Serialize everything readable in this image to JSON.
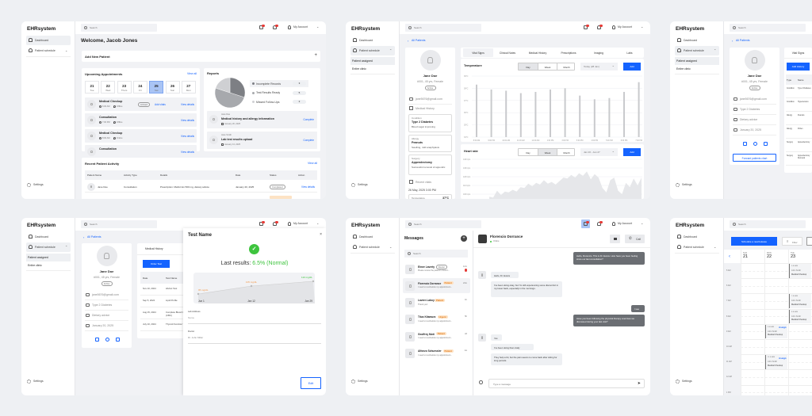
{
  "app": {
    "logo": "EHRsystem",
    "search_placeholder": "Search",
    "account": "My Account",
    "nav": {
      "dashboard": "Dashboard",
      "patient_schedule": "Patient schedule",
      "patient_assigned": "Patient assigned",
      "entire_clinic": "Entire clinic",
      "settings": "Settings"
    }
  },
  "colors": {
    "accent": "#1463ff",
    "main_bg": "#f1f2f5",
    "notification": "#e53935",
    "success": "#3ec43e",
    "warning": "#f2994a",
    "bar": "#c9cacd",
    "bubble_out": "#6b6e73",
    "bubble_in": "#eef0f3"
  },
  "dashboard": {
    "welcome": "Welcome, Jacob Jones",
    "add_patient": "Add New Patient",
    "add_icon": "+",
    "appointments": {
      "title": "Upcoming Appointments",
      "view_all": "View all",
      "dates": [
        {
          "day": "21",
          "weekday": "Tue"
        },
        {
          "day": "22",
          "weekday": "Wed"
        },
        {
          "day": "23",
          "weekday": "Thurs"
        },
        {
          "day": "24",
          "weekday": "Fri"
        },
        {
          "day": "25",
          "weekday": "Sat",
          "selected": true
        },
        {
          "day": "26",
          "weekday": "Sun"
        },
        {
          "day": "27",
          "weekday": "Mon"
        }
      ],
      "items": [
        {
          "title": "Medical Checkup",
          "time": "6:00 AM",
          "mode": "Offline",
          "badge": "Arrived",
          "add": "Add vitals",
          "view": "View details"
        },
        {
          "title": "Consultation",
          "time": "7:00 PM",
          "mode": "Offline",
          "view": "View details"
        },
        {
          "title": "Medical Checkup",
          "time": "8:00 AM",
          "mode": "Online",
          "view": "View details"
        },
        {
          "title": "Consultation",
          "time": "",
          "mode": "",
          "view": "View details"
        }
      ]
    },
    "reports": {
      "title": "Reports",
      "legend": [
        {
          "label": "Incomplete Records",
          "count": "3",
          "color": "#7d7f84"
        },
        {
          "label": "Test Results Ready",
          "count": "5",
          "color": "#a7a9ad"
        },
        {
          "label": "Missed Follow-Ups",
          "count": "2",
          "color": "#cfd0d3"
        }
      ],
      "items": [
        {
          "patient": "Jane Doe",
          "title": "Medical history and allergy information",
          "date": "January 20, 2025",
          "action": "Complete"
        },
        {
          "patient": "Jane Smith",
          "title": "Lab test results upload",
          "date": "January 13, 2025",
          "action": "Complete"
        }
      ]
    },
    "activity": {
      "title": "Recent Patient Activity",
      "view_all": "View all",
      "columns": [
        "Patient Name",
        "Activity Type",
        "Details",
        "Date",
        "Status",
        "Action"
      ],
      "rows": [
        {
          "name": "Jane Doe",
          "type": "Consultation",
          "details": "Prescription: Metformin 500 mg, dietary advice",
          "date": "January 20, 2025",
          "status": "Completed",
          "action": "View details"
        }
      ]
    }
  },
  "patient": {
    "back": "All Patients",
    "name": "Jane Doe",
    "meta": "#001, 45 yrs, Female",
    "status": "Active",
    "email": "jane5676@gmail.com",
    "condition": "Type 2 Diabetes",
    "advice": "Dietary advice",
    "date": "January 20, 2025",
    "forward": "Forward patients chart",
    "medical_history": "Medical History",
    "history_cards": [
      {
        "label": "Condition",
        "title": "Type 2 Diabetes",
        "desc": "Blood sugar improving"
      },
      {
        "label": "Allergy",
        "title": "Peanuts",
        "desc": "Swelling, mild anaphylaxis"
      },
      {
        "label": "Surgery",
        "title": "Appendectomy",
        "desc": "Successful removal of appendix"
      }
    ],
    "recent_vitals": "Recent vitals",
    "vitals_date": "26 May, 2025 3:00 PM",
    "vital_name": "Temperature",
    "vital_value": "37°C"
  },
  "vitals": {
    "tabs": [
      "Vital Signs",
      "Clinical Notes",
      "Medical History",
      "Prescriptions",
      "Imaging",
      "Labs"
    ],
    "range_options": [
      "Day",
      "Week",
      "Month"
    ],
    "add": "Add",
    "temperature": {
      "title": "Temperature",
      "selected": "Day",
      "date": "Today (28 Jan)"
    },
    "heart": {
      "title": "Heart rate",
      "selected": "Week",
      "date": "Jan 20 - Jan 27"
    }
  },
  "history_page": {
    "tab": "Vital Signs",
    "add": "Add History",
    "columns": [
      "Type",
      "Name"
    ],
    "rows": [
      [
        "Condition",
        "Type 2 Diabetes"
      ],
      [
        "Condition",
        "Hypertension"
      ],
      [
        "Allergy",
        "Peanuts"
      ],
      [
        "Allergy",
        "Pollen"
      ],
      [
        "Surgery",
        "Appendectomy"
      ],
      [
        "Surgery",
        "Appendectomy Removal"
      ]
    ]
  },
  "tests": {
    "tab": "Medical History",
    "order": "Order Test",
    "columns": [
      "Date",
      "Test Name"
    ],
    "rows": [
      [
        "Nov 10, 2024",
        "HbA1c Test"
      ],
      [
        "Sep 5, 2024",
        "Lipid Profile"
      ],
      [
        "Aug 15, 2024",
        "Complete Blood Count (CBC)"
      ],
      [
        "July 10, 2024",
        "Thyroid Function Test"
      ]
    ],
    "drawer": {
      "title": "Test Name",
      "close": "×",
      "result_label": "Last results:",
      "result_value": "6.5% (Normal)",
      "lab_label": "Lab Address",
      "lab_placeholder": "Name",
      "doctor_label": "Doctor",
      "doctor_value": "Dr. John Miller",
      "edit": "Edit"
    }
  },
  "messages": {
    "title": "Messages",
    "search": "Search",
    "conversations": [
      {
        "name": "Elmer Laverty",
        "tag": "Doctor",
        "time": "12m",
        "preview": "Please review the patient's blood t...",
        "unread": true
      },
      {
        "name": "Florencio Dorrance",
        "tag": "Patient",
        "time": "24m",
        "preview": "I need to reschedule my appointment...",
        "selected": true
      },
      {
        "name": "Lavern Laboy",
        "tag": "Patient",
        "time": "1h",
        "preview": "Thank you!"
      },
      {
        "name": "Titus Kitamura",
        "tag": "Urgent",
        "time": "5h",
        "preview": "I need to reschedule my appointment..."
      },
      {
        "name": "Geoffrey Mott",
        "tag": "Patient",
        "time": "2d",
        "preview": "I need to reschedule my appointment..."
      },
      {
        "name": "Alfonzo Schuessler",
        "tag": "Patient",
        "time": "1w",
        "preview": "I need to reschedule my appointment..."
      }
    ],
    "chat": {
      "name": "Florencio Dorrance",
      "status": "Online",
      "call": "Call",
      "input_placeholder": "Type a message",
      "messages": [
        {
          "from": "me",
          "text": "Hello, Florencio. This is Dr. Evans. How have you been feeling since our last consultation?"
        },
        {
          "from": "them",
          "text": "Hello, Dr. Evans"
        },
        {
          "from": "them",
          "text": "I've been doing okay, but I'm still experiencing some discomfort in my lower back, especially in the mornings."
        },
        {
          "from": "me",
          "text": "I see"
        },
        {
          "from": "me",
          "text": "Have you been following the physical therapy exercises we discussed during your last visit?"
        },
        {
          "from": "them",
          "text": "Yes"
        },
        {
          "from": "them",
          "text": "I've been doing them daily"
        },
        {
          "from": "them",
          "text": "They help a bit, but the pain seems to come back after sitting for long periods."
        }
      ]
    }
  },
  "calendar": {
    "schedule": "Schedule a new/release",
    "filter": "Filter",
    "prev": "‹",
    "days": [
      {
        "weekday": "SUN",
        "day": "21"
      },
      {
        "weekday": "MON",
        "day": "22"
      },
      {
        "weekday": "TUE",
        "day": "23"
      }
    ],
    "times": [
      "5 AM",
      "6 AM",
      "7 AM",
      "8 AM",
      "9 AM",
      "10 AM",
      "11 AM",
      "12 AM",
      "1 PM"
    ],
    "events": [
      {
        "day": "23",
        "time": "5:00 AM",
        "patient": "John Smith",
        "type": "Medical Checkup"
      },
      {
        "day": "23",
        "time": "7:00 AM",
        "patient": "John Smith",
        "type": "Medical Checkup"
      },
      {
        "day": "23",
        "time": "8:00 AM",
        "patient": "John Smith",
        "type": "Medical Checkup"
      },
      {
        "day": "22",
        "time": "9:00 AM",
        "patient": "John Smith",
        "type": "Medical Checkup",
        "assign": "Assign"
      },
      {
        "day": "22",
        "time": "11:00 AM",
        "patient": "John Smith",
        "type": "Medical Checkup",
        "assign": "Assign"
      }
    ]
  },
  "chart_data": [
    {
      "type": "pie",
      "title": "Reports",
      "categories": [
        "Incomplete Records",
        "Test Results Ready",
        "Missed Follow-Ups"
      ],
      "values": [
        3,
        5,
        2
      ]
    },
    {
      "type": "bar",
      "title": "Temperature",
      "categories": [
        "8:00 AM",
        "9:00 PM",
        "10:00 AM",
        "11:00 AM",
        "12:00 AM",
        "1:00 PM",
        "3:00 PM",
        "5:00 PM",
        "4:00 PM",
        "5:00 PM",
        "6:00 PM",
        "7:00 PM"
      ],
      "values": [
        38.3,
        37.9,
        37.8,
        37.6,
        37.7,
        37.9,
        38.0,
        37.4,
        37.1,
        37.2,
        37.7,
        38.5
      ],
      "ylim": [
        34,
        39
      ],
      "yticks": [
        "39°C",
        "38°C",
        "37°C",
        "36°C",
        "35°C",
        "34°C"
      ],
      "grid": true
    },
    {
      "type": "area",
      "title": "Heart rate",
      "yticks": [
        "140 bpm",
        "130 bpm",
        "120 bpm",
        "110 bpm",
        "100 bpm"
      ],
      "ylim": [
        95,
        140
      ],
      "values": [
        97,
        96,
        104,
        99,
        103,
        102,
        105,
        103,
        108,
        107,
        112,
        109,
        113,
        111,
        116,
        112,
        114,
        111,
        115,
        119,
        118,
        122,
        119,
        124,
        121,
        126,
        117,
        123,
        119,
        107,
        102,
        116,
        119,
        104,
        100,
        113,
        108,
        118,
        110,
        119
      ]
    },
    {
      "type": "line",
      "title": "Last results",
      "categories": [
        "Jun 1",
        "Jan 12",
        "Jan 29"
      ],
      "values": [
        95,
        105,
        110
      ],
      "labels": [
        "95 mg/dL",
        "105 mg/dL",
        "110 mg/dL"
      ]
    }
  ]
}
